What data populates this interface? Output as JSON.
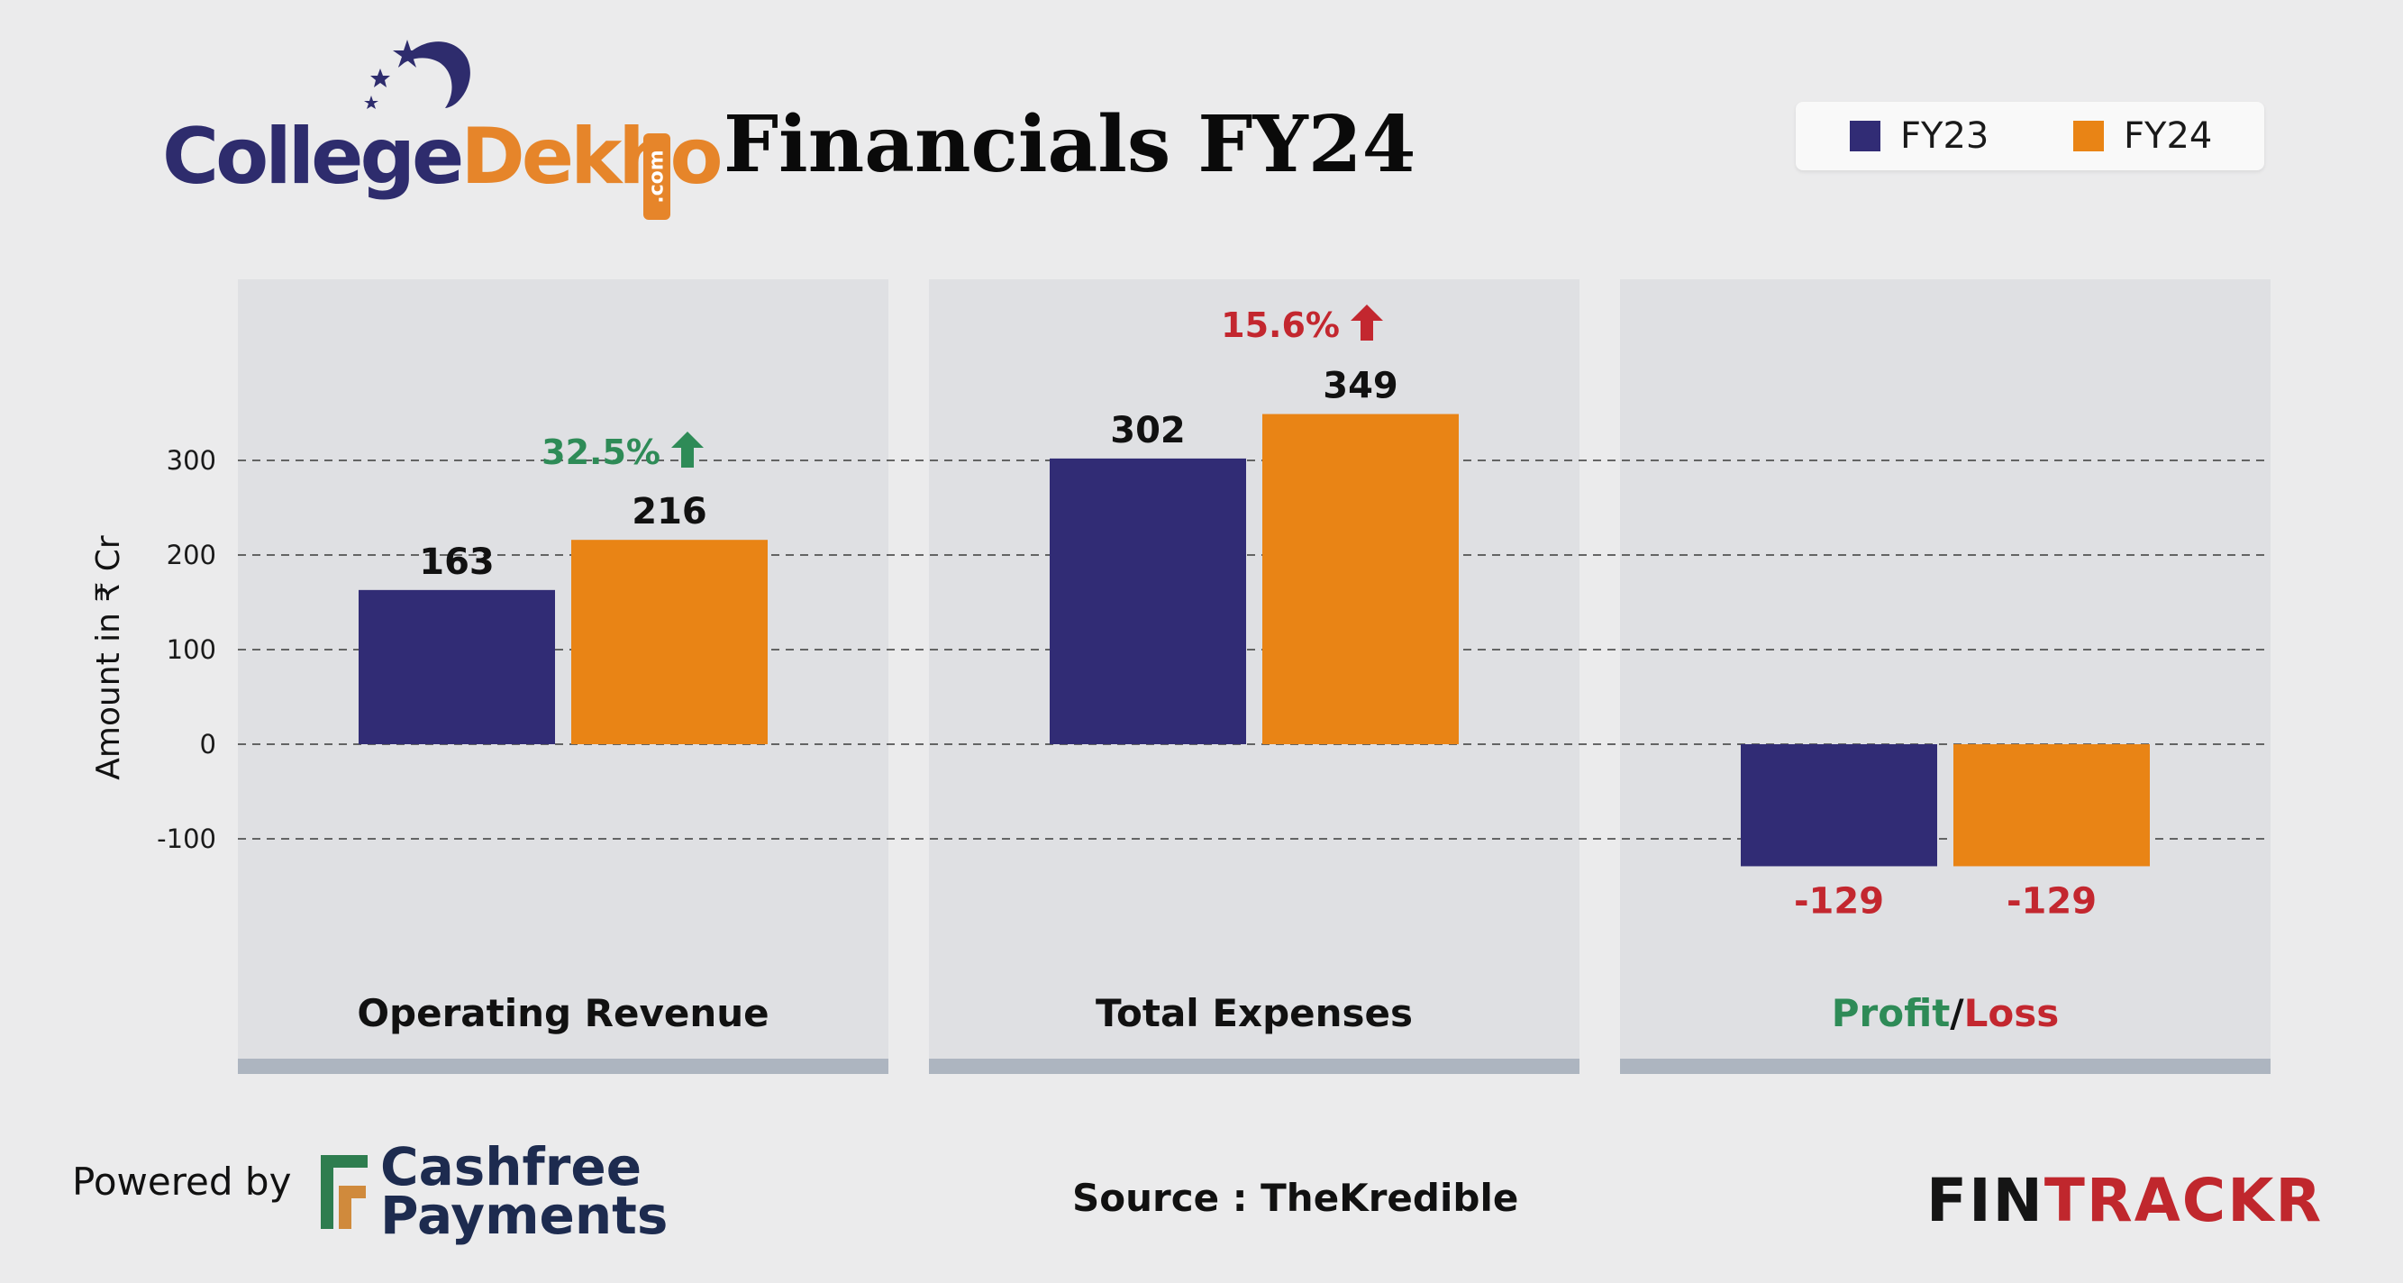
{
  "branding": {
    "logo_part1": "College",
    "logo_part2": "Dekho",
    "logo_suffix": ".com",
    "powered_by": "Powered by",
    "sponsor_line1": "Cashfree",
    "sponsor_line2": "Payments",
    "source": "Source : TheKredible",
    "publisher_part1": "FIN",
    "publisher_part2": "TRACKR"
  },
  "colors": {
    "fy23": "#312c75",
    "fy24": "#e98415",
    "panel_bg": "#dfe0e3",
    "panel_base": "#adb5c0",
    "growth_up": "#2e8b57",
    "growth_expense": "#c3272f",
    "negative_value": "#c3272f",
    "profit_word": "#2e8b57",
    "loss_word": "#c3272f"
  },
  "chart_data": {
    "type": "bar",
    "title": "Financials FY24",
    "ylabel": "Amount in ₹ Cr",
    "xlabel": "",
    "ylim": [
      -200,
      400
    ],
    "yticks": [
      300,
      200,
      100,
      0,
      -100
    ],
    "grid": "dashed horizontal",
    "legend": "top-right",
    "series": [
      {
        "name": "FY23",
        "values": [
          163,
          302,
          -129
        ]
      },
      {
        "name": "FY24",
        "values": [
          216,
          349,
          -129
        ]
      }
    ],
    "categories": [
      "Operating Revenue",
      "Total Expenses",
      "Profit/Loss"
    ],
    "category_label_parts": [
      [
        "Operating Revenue"
      ],
      [
        "Total Expenses"
      ],
      [
        "Profit",
        "/",
        "Loss"
      ]
    ],
    "data_labels": [
      [
        "163",
        "302",
        "-129"
      ],
      [
        "216",
        "349",
        "-129"
      ]
    ],
    "annotations": [
      {
        "category": "Operating Revenue",
        "text": "32.5%",
        "arrow": "up"
      },
      {
        "category": "Total Expenses",
        "text": "15.6%",
        "arrow": "up"
      }
    ]
  }
}
